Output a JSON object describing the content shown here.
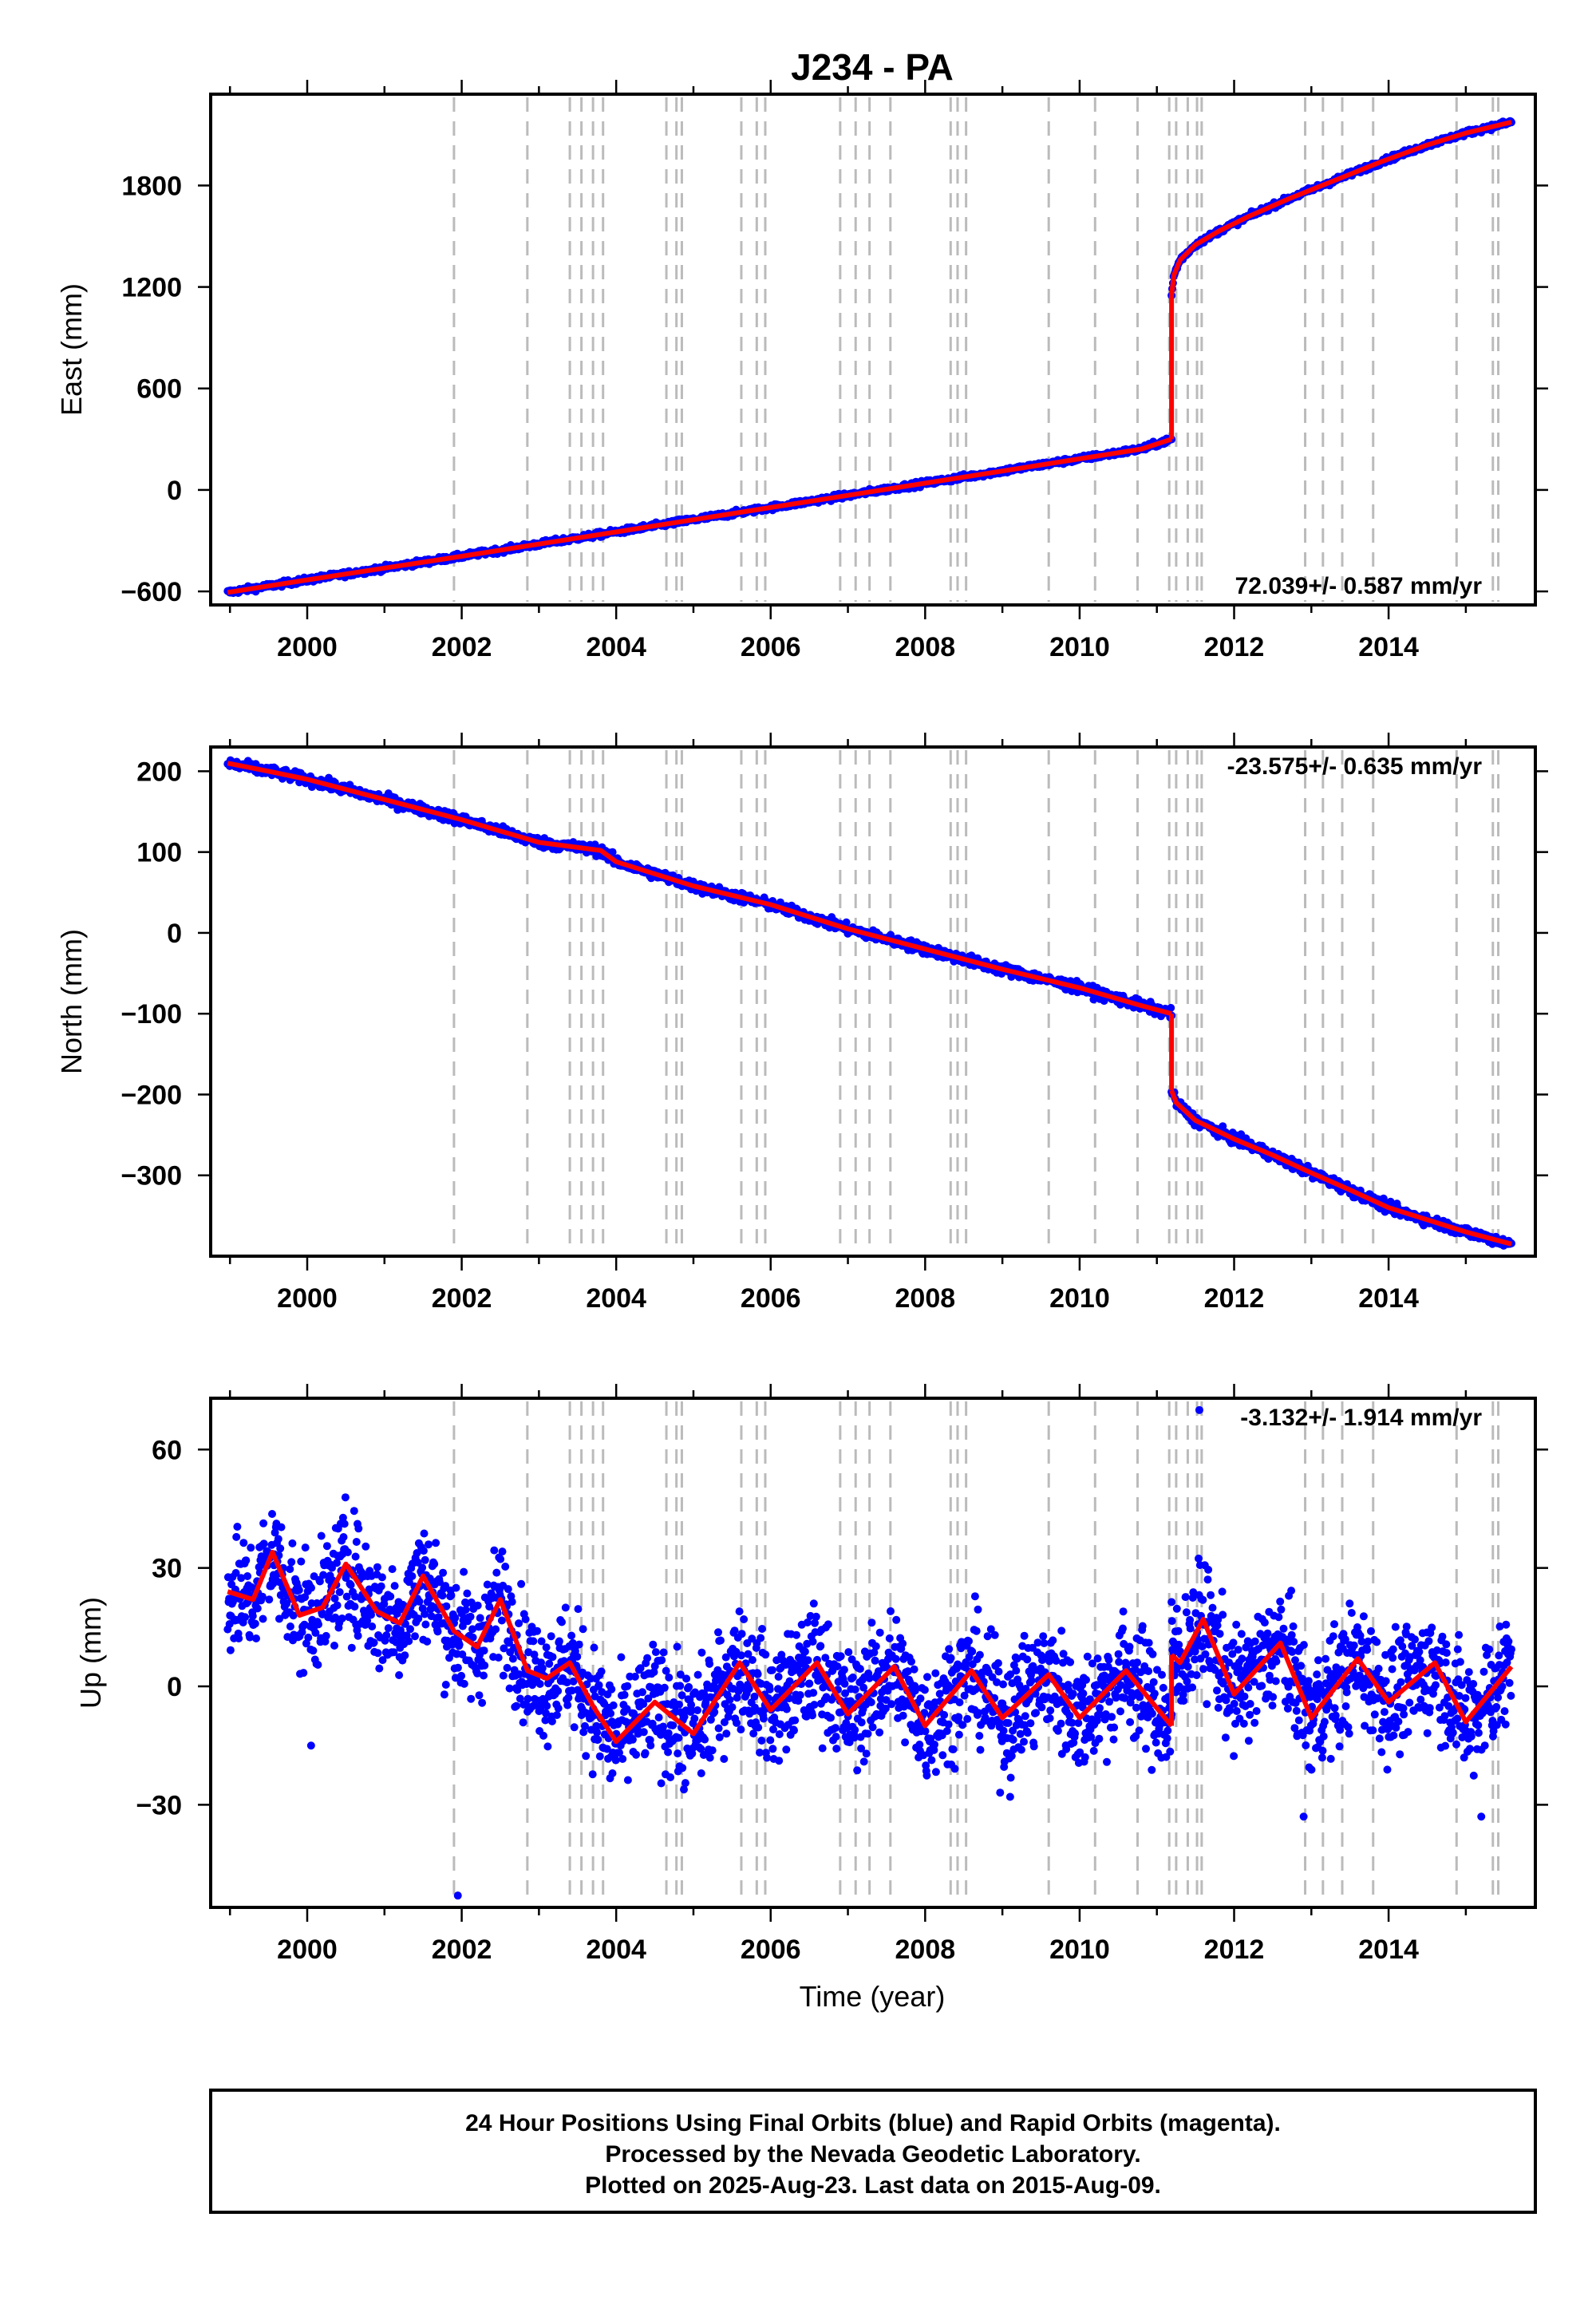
{
  "title": "J234 - PA",
  "xlabel": "Time (year)",
  "footer": [
    "24 Hour Positions Using Final Orbits (blue) and Rapid Orbits (magenta).",
    "Processed by the Nevada Geodetic Laboratory.",
    "Plotted on 2025-Aug-23. Last data on 2015-Aug-09."
  ],
  "colors": {
    "data": "#0000ff",
    "model": "#ff0000",
    "steps": "#bbbbbb",
    "frame": "#000000"
  },
  "chart_data": [
    {
      "type": "scatter",
      "ylabel": "East (mm)",
      "rate_label": "72.039+/- 0.587 mm/yr",
      "rate_position": "bottom-right",
      "grid": false,
      "xlim": [
        1998.75,
        2015.9
      ],
      "ylim": [
        -680,
        2340
      ],
      "xticks": [
        2000,
        2002,
        2004,
        2006,
        2008,
        2010,
        2012,
        2014
      ],
      "yticks": [
        -600,
        0,
        600,
        1200,
        1800
      ],
      "ytick_labels": [
        "−600",
        "0",
        "600",
        "1200",
        "1800"
      ],
      "step_epochs": [
        2001.9,
        2002.85,
        2003.4,
        2003.55,
        2003.7,
        2003.83,
        2004.65,
        2004.78,
        2004.85,
        2005.62,
        2005.82,
        2005.93,
        2006.9,
        2007.1,
        2007.28,
        2007.55,
        2008.33,
        2008.42,
        2008.53,
        2009.6,
        2010.2,
        2010.75,
        2011.16,
        2011.25,
        2011.4,
        2011.52,
        2011.58,
        2012.92,
        2013.15,
        2013.4,
        2013.8,
        2014.88,
        2015.35,
        2015.42
      ],
      "series": [
        {
          "x": [
            1998.97,
            2000,
            2001,
            2002,
            2003,
            2004,
            2005,
            2006,
            2007,
            2008,
            2009,
            2010,
            2010.8,
            2011.19
          ],
          "y": [
            -606,
            -532,
            -462,
            -392,
            -320,
            -248,
            -176,
            -104,
            -32,
            40,
            112,
            184,
            242,
            300
          ]
        },
        {
          "x": [
            2011.19,
            2011.22,
            2011.3,
            2011.5,
            2011.8,
            2012.2,
            2012.7,
            2013.3,
            2013.9,
            2014.5,
            2015.0,
            2015.59
          ],
          "y": [
            1150,
            1270,
            1360,
            1450,
            1530,
            1620,
            1720,
            1830,
            1940,
            2040,
            2110,
            2175
          ]
        }
      ]
    },
    {
      "type": "scatter",
      "ylabel": "North (mm)",
      "rate_label": "-23.575+/- 0.635 mm/yr",
      "rate_position": "top-right",
      "grid": false,
      "xlim": [
        1998.75,
        2015.9
      ],
      "ylim": [
        -400,
        230
      ],
      "xticks": [
        2000,
        2002,
        2004,
        2006,
        2008,
        2010,
        2012,
        2014
      ],
      "yticks": [
        -300,
        -200,
        -100,
        0,
        100,
        200
      ],
      "ytick_labels": [
        "−300",
        "−200",
        "−100",
        "0",
        "100",
        "200"
      ],
      "step_epochs": [
        2001.9,
        2002.85,
        2003.4,
        2003.55,
        2003.7,
        2003.83,
        2004.65,
        2004.78,
        2004.85,
        2005.62,
        2005.82,
        2005.93,
        2006.9,
        2007.1,
        2007.28,
        2007.55,
        2008.33,
        2008.42,
        2008.53,
        2009.6,
        2010.2,
        2010.75,
        2011.16,
        2011.25,
        2011.4,
        2011.52,
        2011.58,
        2012.92,
        2013.15,
        2013.4,
        2013.8,
        2014.88,
        2015.35,
        2015.42
      ],
      "series": [
        {
          "x": [
            1998.97,
            1999.5,
            2000,
            2001,
            2002,
            2003,
            2003.8,
            2004,
            2005,
            2006,
            2007,
            2008,
            2009,
            2010,
            2010.8,
            2011.19
          ],
          "y": [
            210,
            200,
            190,
            165,
            140,
            112,
            102,
            88,
            58,
            35,
            5,
            -20,
            -45,
            -68,
            -90,
            -100
          ]
        },
        {
          "x": [
            2011.19,
            2011.25,
            2011.5,
            2012,
            2012.5,
            2013,
            2013.5,
            2014,
            2014.5,
            2015,
            2015.59
          ],
          "y": [
            -195,
            -210,
            -232,
            -255,
            -275,
            -297,
            -318,
            -340,
            -355,
            -370,
            -385
          ]
        }
      ]
    },
    {
      "type": "scatter",
      "ylabel": "Up (mm)",
      "rate_label": "-3.132+/- 1.914 mm/yr",
      "rate_position": "top-right",
      "grid": false,
      "xlim": [
        1998.75,
        2015.9
      ],
      "ylim": [
        -56,
        73
      ],
      "xticks": [
        2000,
        2002,
        2004,
        2006,
        2008,
        2010,
        2012,
        2014
      ],
      "yticks": [
        -30,
        0,
        30,
        60
      ],
      "ytick_labels": [
        "−30",
        "0",
        "30",
        "60"
      ],
      "step_epochs": [
        2001.9,
        2002.85,
        2003.4,
        2003.55,
        2003.7,
        2003.83,
        2004.65,
        2004.78,
        2004.85,
        2005.62,
        2005.82,
        2005.93,
        2006.9,
        2007.1,
        2007.28,
        2007.55,
        2008.33,
        2008.42,
        2008.53,
        2009.6,
        2010.2,
        2010.75,
        2011.16,
        2011.25,
        2011.4,
        2011.52,
        2011.58,
        2012.92,
        2013.15,
        2013.4,
        2013.8,
        2014.88,
        2015.35,
        2015.42
      ],
      "series": [
        {
          "x": [
            1998.97,
            1999.3,
            1999.55,
            1999.9,
            2000.2,
            2000.5,
            2000.9,
            2001.2,
            2001.5,
            2001.9,
            2002.2,
            2002.5,
            2002.85,
            2003.1,
            2003.4,
            2003.7,
            2004.0,
            2004.5,
            2005.0,
            2005.6,
            2006.0,
            2006.6,
            2007.0,
            2007.6,
            2008.0,
            2008.6,
            2009.0,
            2009.6,
            2010.0,
            2010.6,
            2011.19
          ],
          "y": [
            24,
            22,
            34,
            18,
            20,
            31,
            19,
            16,
            28,
            14,
            10,
            22,
            4,
            2,
            6,
            -5,
            -14,
            -4,
            -12,
            6,
            -6,
            6,
            -7,
            5,
            -10,
            4,
            -8,
            3,
            -8,
            4,
            -10
          ]
        },
        {
          "x": [
            2011.19,
            2011.3,
            2011.6,
            2012.0,
            2012.6,
            2013.0,
            2013.6,
            2014.0,
            2014.6,
            2015.0,
            2015.59
          ],
          "y": [
            8,
            6,
            17,
            -2,
            11,
            -8,
            7,
            -4,
            6,
            -9,
            5
          ]
        }
      ]
    }
  ]
}
